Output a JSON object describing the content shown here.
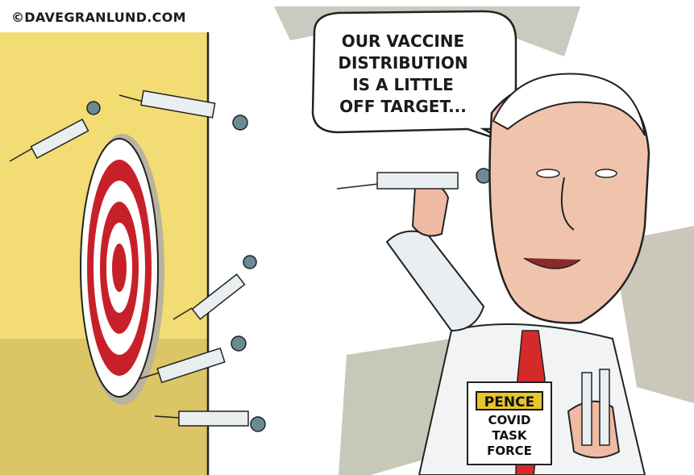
{
  "credit": "©DAVEGRANLUND.COM",
  "speech_bubble": {
    "lines": [
      "OUR VACCINE",
      "DISTRIBUTION",
      "IS A LITTLE",
      "OFF TARGET..."
    ]
  },
  "badge": {
    "name": "PENCE",
    "lines": [
      "COVID",
      "TASK",
      "FORCE"
    ]
  },
  "icons": {
    "share": "share-upload-icon"
  },
  "colors": {
    "wall": "#f2dc73",
    "target_red": "#c8202a",
    "tie": "#d42a2a",
    "badge_yellow": "#e8c62b"
  }
}
